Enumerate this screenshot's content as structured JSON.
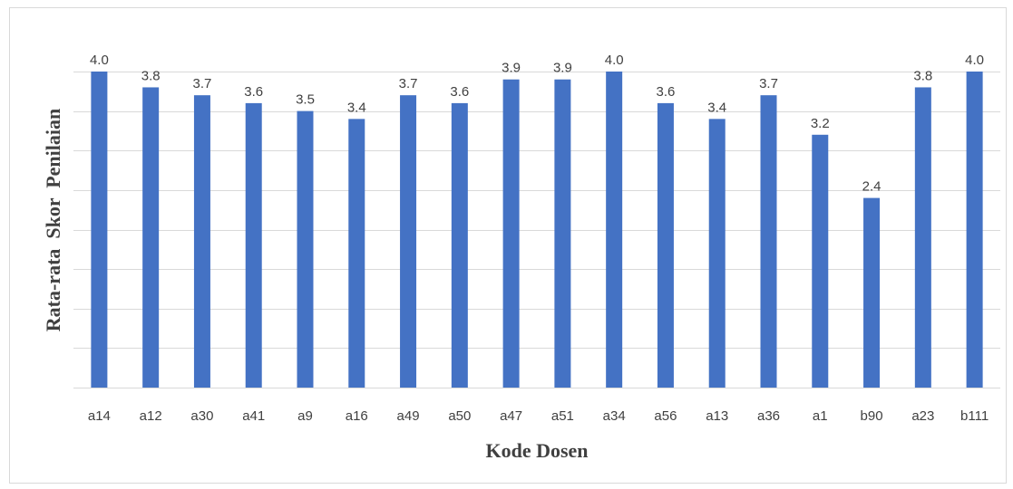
{
  "chart_data": {
    "type": "bar",
    "title": "",
    "xlabel": "Kode Dosen",
    "ylabel": "Rata-rata  Skor  Penilaian",
    "categories": [
      "a14",
      "a12",
      "a30",
      "a41",
      "a9",
      "a16",
      "a49",
      "a50",
      "a47",
      "a51",
      "a34",
      "a56",
      "a13",
      "a36",
      "a1",
      "b90",
      "a23",
      "b111"
    ],
    "values": [
      4.0,
      3.8,
      3.7,
      3.6,
      3.5,
      3.4,
      3.7,
      3.6,
      3.9,
      3.9,
      4.0,
      3.6,
      3.4,
      3.7,
      3.2,
      2.4,
      3.8,
      4.0
    ],
    "value_labels": [
      "4.0",
      "3.8",
      "3.7",
      "3.6",
      "3.5",
      "3.4",
      "3.7",
      "3.6",
      "3.9",
      "3.9",
      "4.0",
      "3.6",
      "3.4",
      "3.7",
      "3.2",
      "2.4",
      "3.8",
      "4.0"
    ],
    "ylim": [
      0,
      4.0
    ],
    "y_gridline_step": 0.5,
    "y_tick_labels_visible": false,
    "grid": true,
    "bar_color": "#4472c4",
    "grid_color": "#d9d9d9",
    "text_color": "#404040"
  }
}
